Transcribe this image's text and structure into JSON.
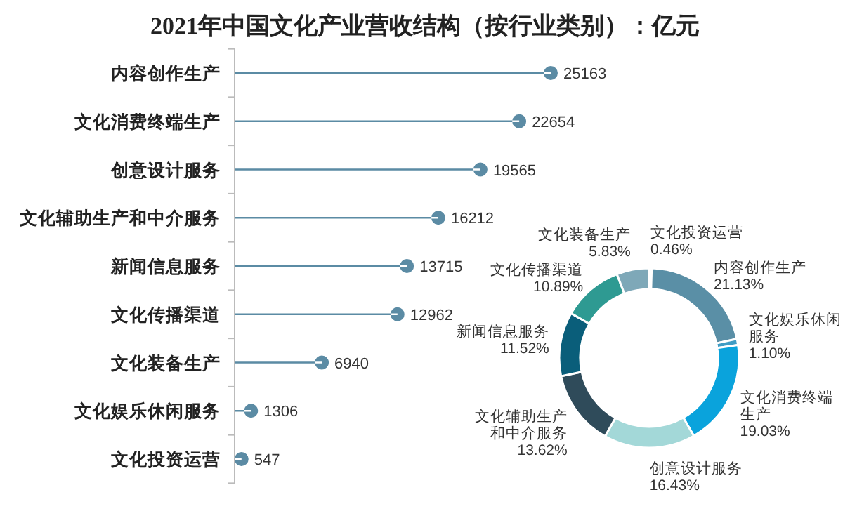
{
  "chart_data": [
    {
      "type": "lollipop",
      "title": "2021年中国文化产业营收结构（按行业类别）：亿元",
      "orientation": "horizontal",
      "categories": [
        "内容创作生产",
        "文化消费终端生产",
        "创意设计服务",
        "文化辅助生产和中介服务",
        "新闻信息服务",
        "文化传播渠道",
        "文化装备生产",
        "文化娱乐休闲服务",
        "文化投资运营"
      ],
      "values": [
        25163,
        22654,
        19565,
        16212,
        13715,
        12962,
        6940,
        1306,
        547
      ],
      "color": "#5b8ba4",
      "marker": "circle",
      "data_labels": true
    },
    {
      "type": "donut",
      "categories": [
        "文化投资运营",
        "内容创作生产",
        "文化娱乐休闲服务",
        "文化消费终端生产",
        "创意设计服务",
        "文化辅助生产和中介服务",
        "新闻信息服务",
        "文化传播渠道",
        "文化装备生产"
      ],
      "values": [
        0.46,
        21.13,
        1.1,
        19.03,
        16.43,
        13.62,
        11.52,
        10.89,
        5.83
      ],
      "value_labels": [
        "0.46%",
        "21.13%",
        "1.10%",
        "19.03%",
        "16.43%",
        "13.62%",
        "11.52%",
        "10.89%",
        "5.83%"
      ],
      "colors": [
        "#1aa3e0",
        "#5a8fa6",
        "#3f9cc4",
        "#0aa3dc",
        "#a3d8d8",
        "#2f4b5a",
        "#0a5e7a",
        "#2e9a92",
        "#7ea8b8"
      ]
    }
  ]
}
